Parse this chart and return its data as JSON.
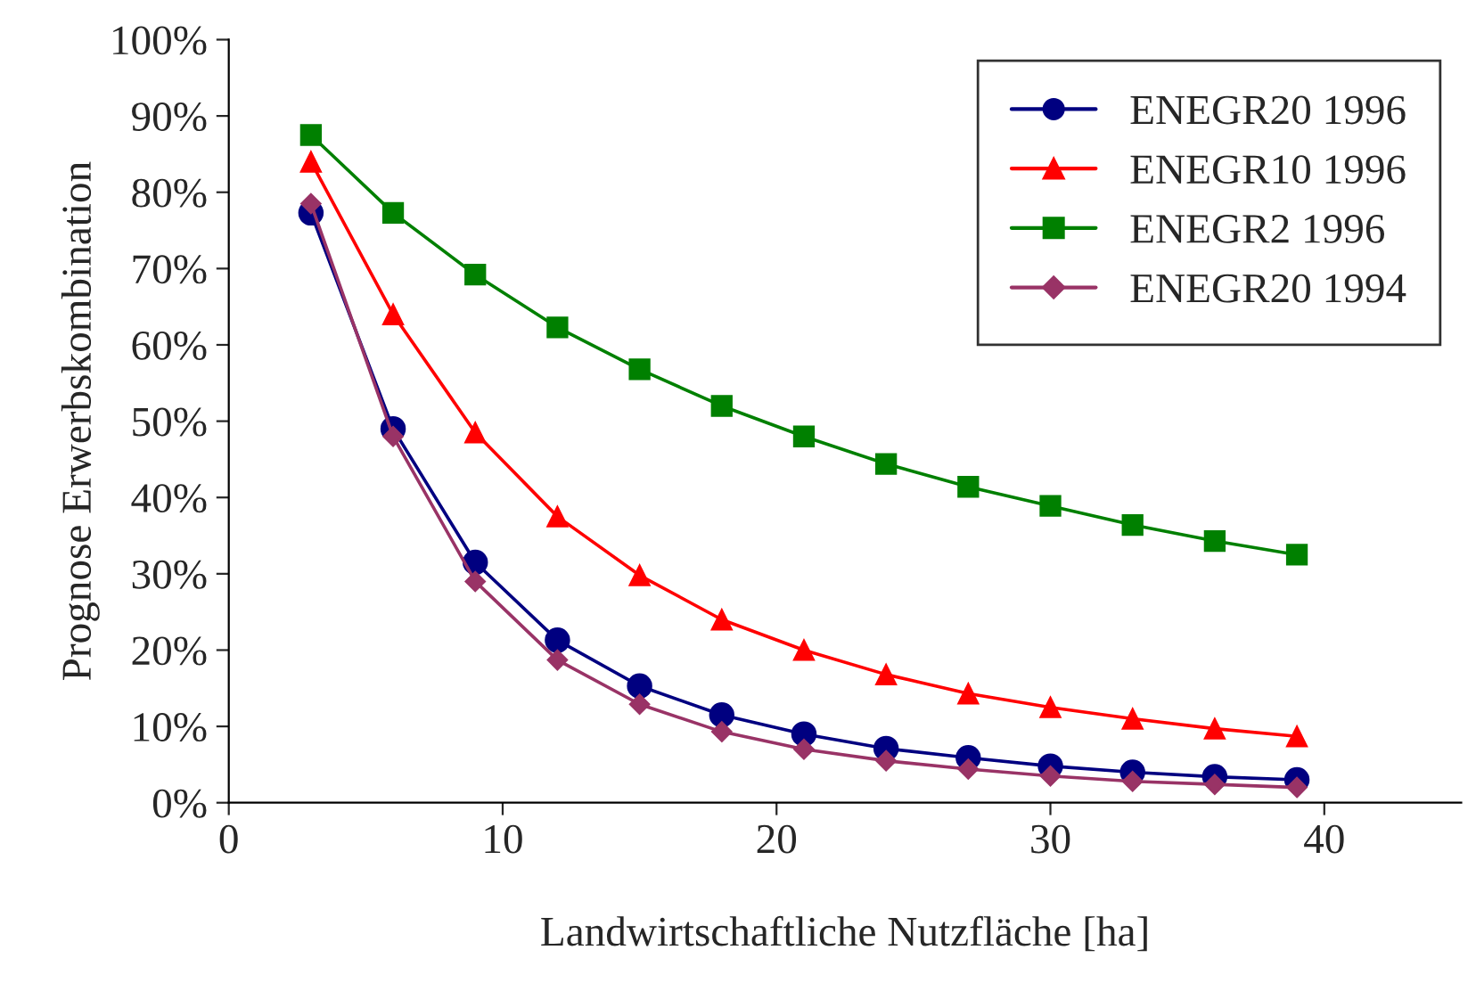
{
  "chart_data": {
    "type": "line",
    "xlabel": "Landwirtschaftliche Nutzfläche [ha]",
    "ylabel": "Prognose Erwerbskombination",
    "xlim": [
      0,
      45
    ],
    "xticks": [
      0,
      10,
      20,
      30,
      40
    ],
    "ylim": [
      0,
      100
    ],
    "yticks": [
      {
        "value": 0,
        "label": "0%"
      },
      {
        "value": 10,
        "label": "10%"
      },
      {
        "value": 20,
        "label": "20%"
      },
      {
        "value": 30,
        "label": "30%"
      },
      {
        "value": 40,
        "label": "40%"
      },
      {
        "value": 50,
        "label": "50%"
      },
      {
        "value": 60,
        "label": "60%"
      },
      {
        "value": 70,
        "label": "70%"
      },
      {
        "value": 80,
        "label": "80%"
      },
      {
        "value": 90,
        "label": "90%"
      },
      {
        "value": 100,
        "label": "100%"
      }
    ],
    "grid": false,
    "legend": "top right",
    "x": [
      3,
      6,
      9,
      12,
      15,
      18,
      21,
      24,
      27,
      30,
      33,
      36,
      39
    ],
    "series": [
      {
        "name": "ENEGR20 1996",
        "color": "#000080",
        "marker": "circle",
        "values": [
          77.3,
          49,
          31.5,
          21.3,
          15.3,
          11.5,
          9,
          7.1,
          5.9,
          4.8,
          4,
          3.4,
          3
        ]
      },
      {
        "name": "ENEGR10 1996",
        "color": "#ff0000",
        "marker": "triangle",
        "values": [
          84,
          64,
          48.5,
          37.5,
          29.8,
          24,
          20,
          16.8,
          14.3,
          12.5,
          11,
          9.7,
          8.7
        ]
      },
      {
        "name": "ENEGR2 1996",
        "color": "#008000",
        "marker": "square",
        "values": [
          87.5,
          77.3,
          69.2,
          62.3,
          56.8,
          52,
          48,
          44.4,
          41.4,
          38.9,
          36.4,
          34.3,
          32.5
        ]
      },
      {
        "name": "ENEGR20 1994",
        "color": "#993366",
        "marker": "diamond",
        "values": [
          78.5,
          48,
          29,
          18.7,
          12.9,
          9.3,
          7,
          5.5,
          4.4,
          3.5,
          2.8,
          2.4,
          2
        ]
      }
    ]
  }
}
